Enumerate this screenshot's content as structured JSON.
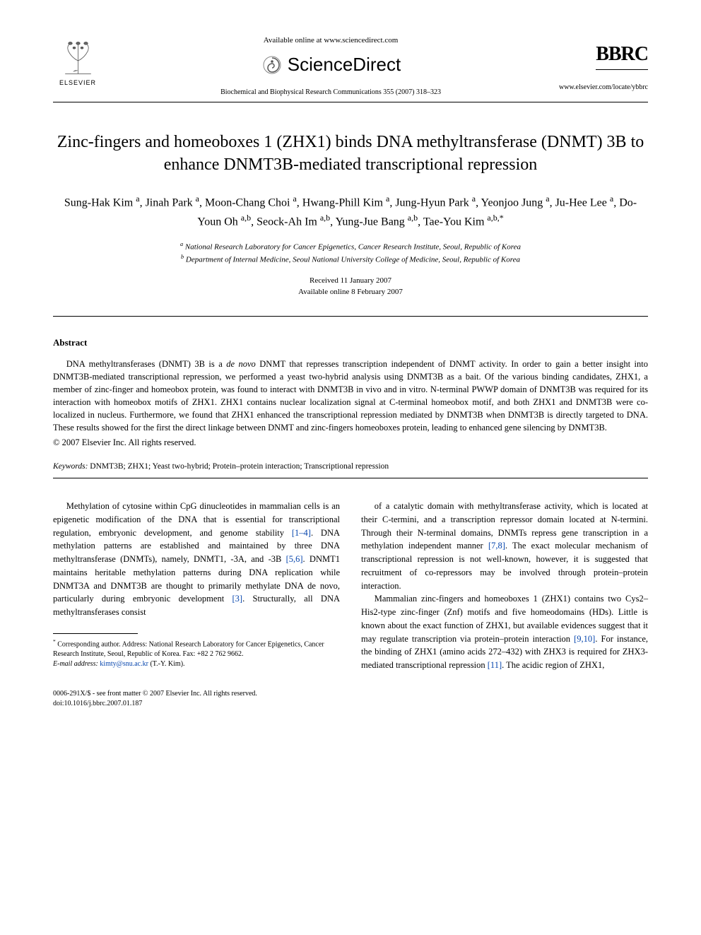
{
  "header": {
    "available_online": "Available online at www.sciencedirect.com",
    "sd_brand": "ScienceDirect",
    "journal_ref": "Biochemical and Biophysical Research Communications 355 (2007) 318–323",
    "elsevier_label": "ELSEVIER",
    "bbrc_label": "BBRC",
    "journal_url": "www.elsevier.com/locate/ybbrc"
  },
  "title": "Zinc-fingers and homeoboxes 1 (ZHX1) binds DNA methyltransferase (DNMT) 3B to enhance DNMT3B-mediated transcriptional repression",
  "authors_html": "Sung-Hak Kim <sup>a</sup>, Jinah Park <sup>a</sup>, Moon-Chang Choi <sup>a</sup>, Hwang-Phill Kim <sup>a</sup>, Jung-Hyun Park <sup>a</sup>, Yeonjoo Jung <sup>a</sup>, Ju-Hee Lee <sup>a</sup>, Do-Youn Oh <sup>a,b</sup>, Seock-Ah Im <sup>a,b</sup>, Yung-Jue Bang <sup>a,b</sup>, Tae-You Kim <sup>a,b,*</sup>",
  "affiliations": {
    "a": "National Research Laboratory for Cancer Epigenetics, Cancer Research Institute, Seoul, Republic of Korea",
    "b": "Department of Internal Medicine, Seoul National University College of Medicine, Seoul, Republic of Korea"
  },
  "dates": {
    "received": "Received 11 January 2007",
    "online": "Available online 8 February 2007"
  },
  "abstract_heading": "Abstract",
  "abstract_text": "DNA methyltransferases (DNMT) 3B is a de novo DNMT that represses transcription independent of DNMT activity. In order to gain a better insight into DNMT3B-mediated transcriptional repression, we performed a yeast two-hybrid analysis using DNMT3B as a bait. Of the various binding candidates, ZHX1, a member of zinc-finger and homeobox protein, was found to interact with DNMT3B in vivo and in vitro. N-terminal PWWP domain of DNMT3B was required for its interaction with homeobox motifs of ZHX1. ZHX1 contains nuclear localization signal at C-terminal homeobox motif, and both ZHX1 and DNMT3B were co-localized in nucleus. Furthermore, we found that ZHX1 enhanced the transcriptional repression mediated by DNMT3B when DNMT3B is directly targeted to DNA. These results showed for the first the direct linkage between DNMT and zinc-fingers homeoboxes protein, leading to enhanced gene silencing by DNMT3B.",
  "copyright": "© 2007 Elsevier Inc. All rights reserved.",
  "keywords_label": "Keywords:",
  "keywords": "DNMT3B; ZHX1; Yeast two-hybrid; Protein–protein interaction; Transcriptional repression",
  "body": {
    "col1_p1": "Methylation of cytosine within CpG dinucleotides in mammalian cells is an epigenetic modification of the DNA that is essential for transcriptional regulation, embryonic development, and genome stability [1–4]. DNA methylation patterns are established and maintained by three DNA methyltransferase (DNMTs), namely, DNMT1, -3A, and -3B [5,6]. DNMT1 maintains heritable methylation patterns during DNA replication while DNMT3A and DNMT3B are thought to primarily methylate DNA de novo, particularly during embryonic development [3]. Structurally, all DNA methyltransferases consist",
    "col2_p1": "of a catalytic domain with methyltransferase activity, which is located at their C-termini, and a transcription repressor domain located at N-termini. Through their N-terminal domains, DNMTs repress gene transcription in a methylation independent manner [7,8]. The exact molecular mechanism of transcriptional repression is not well-known, however, it is suggested that recruitment of co-repressors may be involved through protein–protein interaction.",
    "col2_p2": "Mammalian zinc-fingers and homeoboxes 1 (ZHX1) contains two Cys2–His2-type zinc-finger (Znf) motifs and five homeodomains (HDs). Little is known about the exact function of ZHX1, but available evidences suggest that it may regulate transcription via protein–protein interaction [9,10]. For instance, the binding of ZHX1 (amino acids 272–432) with ZHX3 is required for ZHX3-mediated transcriptional repression [11]. The acidic region of ZHX1,"
  },
  "footnote": {
    "corr": "Corresponding author. Address: National Research Laboratory for Cancer Epigenetics, Cancer Research Institute, Seoul, Republic of Korea. Fax: +82 2 762 9662.",
    "email_label": "E-mail address:",
    "email": "kimty@snu.ac.kr",
    "email_name": "(T.-Y. Kim)."
  },
  "bottom": {
    "issn": "0006-291X/$ - see front matter © 2007 Elsevier Inc. All rights reserved.",
    "doi": "doi:10.1016/j.bbrc.2007.01.187"
  },
  "ref_colors": {
    "link": "#0645ad"
  }
}
